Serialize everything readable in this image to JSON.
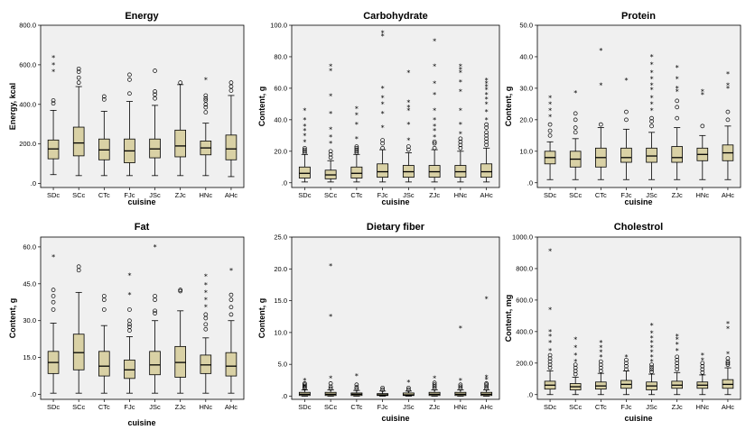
{
  "colors": {
    "plot_bg": "#f0f0f0",
    "box_fill": "#d9d1a5",
    "line": "#000000"
  },
  "chart_data": [
    {
      "type": "box",
      "title": "Energy",
      "xlabel": "cuisine",
      "ylabel": "Energy, kcal",
      "ylim": [
        -20,
        800
      ],
      "ticks": [
        ".0",
        "200.0",
        "400.0",
        "600.0",
        "800.0"
      ],
      "tick_values": [
        0,
        200,
        400,
        600,
        800
      ],
      "categories": [
        "SDc",
        "SCc",
        "CTc",
        "FJc",
        "JSc",
        "ZJc",
        "HNc",
        "AHc"
      ],
      "boxes": [
        {
          "min": 45,
          "q1": 125,
          "median": 175,
          "q3": 220,
          "max": 370,
          "outliers_circle": [
            405,
            420
          ],
          "outliers_star": [
            565,
            600,
            635
          ]
        },
        {
          "min": 40,
          "q1": 140,
          "median": 205,
          "q3": 285,
          "max": 490,
          "outliers_circle": [
            510,
            535,
            565,
            580
          ],
          "outliers_star": []
        },
        {
          "min": 40,
          "q1": 120,
          "median": 170,
          "q3": 225,
          "max": 365,
          "outliers_circle": [
            425,
            440
          ],
          "outliers_star": []
        },
        {
          "min": 40,
          "q1": 105,
          "median": 165,
          "q3": 225,
          "max": 415,
          "outliers_circle": [
            455,
            525,
            550
          ],
          "outliers_star": []
        },
        {
          "min": 40,
          "q1": 130,
          "median": 175,
          "q3": 225,
          "max": 395,
          "outliers_circle": [
            430,
            450,
            465,
            570
          ],
          "outliers_star": []
        },
        {
          "min": 40,
          "q1": 135,
          "median": 190,
          "q3": 270,
          "max": 500,
          "outliers_circle": [
            510
          ],
          "outliers_star": []
        },
        {
          "min": 40,
          "q1": 145,
          "median": 180,
          "q3": 215,
          "max": 305,
          "outliers_circle": [
            360,
            385,
            400,
            420,
            430,
            445
          ],
          "outliers_star": [
            525
          ]
        },
        {
          "min": 35,
          "q1": 120,
          "median": 175,
          "q3": 245,
          "max": 445,
          "outliers_circle": [
            470,
            490,
            510
          ],
          "outliers_star": []
        }
      ]
    },
    {
      "type": "box",
      "title": "Carbohydrate",
      "xlabel": "cuisine",
      "ylabel": "Content, g",
      "ylim": [
        -3,
        100
      ],
      "ticks": [
        ".0",
        "20.0",
        "40.0",
        "60.0",
        "80.0",
        "100.0"
      ],
      "tick_values": [
        0,
        20,
        40,
        60,
        80,
        100
      ],
      "categories": [
        "SDc",
        "SCc",
        "CTc",
        "FJc",
        "JSc",
        "ZJc",
        "HNc",
        "AHc"
      ],
      "boxes": [
        {
          "min": 0.5,
          "q1": 3,
          "median": 6,
          "q3": 10,
          "max": 18,
          "outliers_circle": [
            19,
            20,
            21,
            22
          ],
          "outliers_star": [
            26,
            30,
            33,
            36,
            40,
            46
          ]
        },
        {
          "min": 0.5,
          "q1": 2.5,
          "median": 5,
          "q3": 8,
          "max": 14,
          "outliers_circle": [
            16,
            18,
            20
          ],
          "outliers_star": [
            25,
            29,
            34,
            44,
            55,
            71,
            74
          ]
        },
        {
          "min": 0.5,
          "q1": 3,
          "median": 6,
          "q3": 10,
          "max": 18,
          "outliers_circle": [
            19,
            20,
            21,
            22,
            23
          ],
          "outliers_star": [
            28,
            37,
            43,
            47
          ]
        },
        {
          "min": 0.5,
          "q1": 3.5,
          "median": 7,
          "q3": 12,
          "max": 21,
          "outliers_circle": [
            22,
            25,
            27
          ],
          "outliers_star": [
            35,
            44,
            50,
            54,
            60,
            93,
            95
          ]
        },
        {
          "min": 0.5,
          "q1": 3.5,
          "median": 7,
          "q3": 11,
          "max": 19,
          "outliers_circle": [
            21,
            23
          ],
          "outliers_star": [
            27,
            37,
            46,
            48,
            51,
            70
          ]
        },
        {
          "min": 0.5,
          "q1": 3.5,
          "median": 7,
          "q3": 11,
          "max": 21,
          "outliers_circle": [
            22,
            25,
            26
          ],
          "outliers_star": [
            29,
            33,
            36,
            40,
            46,
            56,
            63,
            74,
            90
          ]
        },
        {
          "min": 0.5,
          "q1": 3.5,
          "median": 7,
          "q3": 11,
          "max": 20,
          "outliers_circle": [
            22,
            24,
            26,
            28
          ],
          "outliers_star": [
            31,
            37,
            46,
            58,
            64,
            70,
            72,
            74
          ]
        },
        {
          "min": 0.5,
          "q1": 3.5,
          "median": 7,
          "q3": 12,
          "max": 22,
          "outliers_circle": [
            24,
            26,
            28,
            30,
            32,
            35,
            37
          ],
          "outliers_star": [
            40,
            45,
            50,
            53,
            56,
            59,
            61,
            63,
            65
          ]
        }
      ]
    },
    {
      "type": "box",
      "title": "Protein",
      "xlabel": "cuisine",
      "ylabel": "Content, g",
      "ylim": [
        -1.5,
        50
      ],
      "ticks": [
        ".0",
        "10.0",
        "20.0",
        "30.0",
        "40.0",
        "50.0"
      ],
      "tick_values": [
        0,
        10,
        20,
        30,
        40,
        50
      ],
      "categories": [
        "SDc",
        "SCc",
        "CTc",
        "FJc",
        "JSc",
        "ZJc",
        "HNc",
        "AHc"
      ],
      "boxes": [
        {
          "min": 1,
          "q1": 6,
          "median": 8,
          "q3": 10,
          "max": 13,
          "outliers_circle": [
            15,
            16.5,
            18.5
          ],
          "outliers_star": [
            21,
            23,
            25,
            27
          ]
        },
        {
          "min": 1,
          "q1": 5,
          "median": 7.5,
          "q3": 10,
          "max": 14,
          "outliers_circle": [
            16,
            17.5,
            20,
            22
          ],
          "outliers_star": [
            28.5
          ]
        },
        {
          "min": 1,
          "q1": 5,
          "median": 8,
          "q3": 11,
          "max": 17.5,
          "outliers_circle": [
            18.5
          ],
          "outliers_star": [
            31,
            42
          ]
        },
        {
          "min": 1,
          "q1": 6.5,
          "median": 8,
          "q3": 11,
          "max": 17,
          "outliers_circle": [
            20,
            22.5
          ],
          "outliers_star": [
            32.5
          ]
        },
        {
          "min": 1,
          "q1": 6.5,
          "median": 8.5,
          "q3": 11,
          "max": 16,
          "outliers_circle": [
            18,
            19.5,
            20.5
          ],
          "outliers_star": [
            23,
            25,
            27,
            29.5,
            31,
            33,
            35,
            37.5,
            40
          ]
        },
        {
          "min": 1,
          "q1": 6.5,
          "median": 8,
          "q3": 11.5,
          "max": 17.5,
          "outliers_circle": [
            20.5,
            24,
            26
          ],
          "outliers_star": [
            29,
            30,
            33,
            36.5
          ]
        },
        {
          "min": 1,
          "q1": 7,
          "median": 9,
          "q3": 11,
          "max": 15,
          "outliers_circle": [
            18
          ],
          "outliers_star": [
            28,
            29
          ]
        },
        {
          "min": 1,
          "q1": 7,
          "median": 9.5,
          "q3": 12,
          "max": 18,
          "outliers_circle": [
            20,
            22.5
          ],
          "outliers_star": [
            30,
            31,
            34.5
          ]
        }
      ]
    },
    {
      "type": "box",
      "title": "Fat",
      "xlabel": "cuisine",
      "ylabel": "Content, g",
      "ylim": [
        -2,
        64
      ],
      "ticks": [
        ".0",
        "15.0",
        "30.0",
        "45.0",
        "60.0"
      ],
      "tick_values": [
        0,
        15,
        30,
        45,
        60
      ],
      "categories": [
        "SDc",
        "SCc",
        "CTc",
        "FJc",
        "JSc",
        "ZJc",
        "HNc",
        "AHc"
      ],
      "boxes": [
        {
          "min": 0.5,
          "q1": 8.5,
          "median": 13,
          "q3": 17.5,
          "max": 29,
          "outliers_circle": [
            34.5,
            37.5,
            40,
            42.5
          ],
          "outliers_star": [
            56
          ]
        },
        {
          "min": 0.5,
          "q1": 10,
          "median": 17,
          "q3": 24.5,
          "max": 41.5,
          "outliers_circle": [
            50.5,
            52
          ],
          "outliers_star": []
        },
        {
          "min": 0.5,
          "q1": 7.5,
          "median": 11.5,
          "q3": 17.5,
          "max": 28,
          "outliers_circle": [
            34.5,
            38.5,
            40
          ],
          "outliers_star": []
        },
        {
          "min": 0.5,
          "q1": 6.5,
          "median": 10,
          "q3": 14,
          "max": 23.5,
          "outliers_circle": [
            26,
            27.5,
            28.5,
            30,
            34.5
          ],
          "outliers_star": [
            40.5,
            48.5
          ]
        },
        {
          "min": 0.5,
          "q1": 8,
          "median": 12,
          "q3": 17.5,
          "max": 30,
          "outliers_circle": [
            33,
            34,
            38.5,
            40
          ],
          "outliers_star": [
            60
          ]
        },
        {
          "min": 0.5,
          "q1": 7,
          "median": 13,
          "q3": 19.5,
          "max": 34,
          "outliers_circle": [
            42,
            42.5
          ],
          "outliers_star": []
        },
        {
          "min": 0.5,
          "q1": 8.5,
          "median": 12,
          "q3": 16,
          "max": 23,
          "outliers_circle": [
            26.5,
            28.5,
            31,
            32.5
          ],
          "outliers_star": [
            35.5,
            38.5,
            41.5,
            44.5,
            48
          ]
        },
        {
          "min": 0.5,
          "q1": 7.5,
          "median": 11.5,
          "q3": 17,
          "max": 30,
          "outliers_circle": [
            32.5,
            35.5,
            38.5,
            40.5
          ],
          "outliers_star": [
            50.5
          ]
        }
      ]
    },
    {
      "type": "box",
      "title": "Dietary fiber",
      "xlabel": "cuisine",
      "ylabel": "Content, g",
      "ylim": [
        -0.5,
        25
      ],
      "ticks": [
        ".0",
        "5.0",
        "10.0",
        "15.0",
        "20.0",
        "25.0"
      ],
      "tick_values": [
        0,
        5,
        10,
        15,
        20,
        25
      ],
      "categories": [
        "SDc",
        "SCc",
        "CTc",
        "FJc",
        "JSc",
        "ZJc",
        "HNc",
        "AHc"
      ],
      "boxes": [
        {
          "min": 0,
          "q1": 0.1,
          "median": 0.3,
          "q3": 0.6,
          "max": 1.0,
          "outliers_circle": [
            1.2,
            1.4,
            1.6,
            1.8,
            2.0
          ],
          "outliers_star": [
            2.5
          ]
        },
        {
          "min": 0,
          "q1": 0.1,
          "median": 0.3,
          "q3": 0.6,
          "max": 1.0,
          "outliers_circle": [
            1.2,
            1.5,
            2.0
          ],
          "outliers_star": [
            2.8,
            12.5,
            20.5
          ]
        },
        {
          "min": 0,
          "q1": 0.1,
          "median": 0.3,
          "q3": 0.5,
          "max": 0.9,
          "outliers_circle": [
            1.1,
            1.4,
            1.8
          ],
          "outliers_star": [
            3.2
          ]
        },
        {
          "min": 0,
          "q1": 0.1,
          "median": 0.2,
          "q3": 0.4,
          "max": 0.8,
          "outliers_circle": [
            1.0,
            1.3
          ],
          "outliers_star": []
        },
        {
          "min": 0,
          "q1": 0.1,
          "median": 0.2,
          "q3": 0.5,
          "max": 0.8,
          "outliers_circle": [
            1.0,
            1.3
          ],
          "outliers_star": [
            2.2
          ]
        },
        {
          "min": 0,
          "q1": 0.1,
          "median": 0.3,
          "q3": 0.6,
          "max": 1.0,
          "outliers_circle": [
            1.2,
            1.5,
            1.8,
            2.1
          ],
          "outliers_star": [
            2.8
          ]
        },
        {
          "min": 0,
          "q1": 0.1,
          "median": 0.3,
          "q3": 0.6,
          "max": 1.0,
          "outliers_circle": [
            1.2,
            1.5,
            1.8
          ],
          "outliers_star": [
            2.5,
            10.7
          ]
        },
        {
          "min": 0,
          "q1": 0.1,
          "median": 0.3,
          "q3": 0.6,
          "max": 1.0,
          "outliers_circle": [
            1.2,
            1.5,
            1.8,
            2.0
          ],
          "outliers_star": [
            2.6,
            3.0,
            15.3
          ]
        }
      ]
    },
    {
      "type": "box",
      "title": "Cholestrol",
      "xlabel": "cuisine",
      "ylabel": "Content, mg",
      "ylim": [
        -30,
        1000
      ],
      "ticks": [
        ".0",
        "200.0",
        "400.0",
        "600.0",
        "800.0",
        "1000.0"
      ],
      "tick_values": [
        0,
        200,
        400,
        600,
        800,
        1000
      ],
      "categories": [
        "SDc",
        "SCc",
        "CTc",
        "FJc",
        "JSc",
        "ZJc",
        "HNc",
        "AHc"
      ],
      "boxes": [
        {
          "min": 0,
          "q1": 35,
          "median": 60,
          "q3": 85,
          "max": 150,
          "outliers_circle": [
            170,
            190,
            210,
            230,
            250
          ],
          "outliers_star": [
            280,
            330,
            370,
            400,
            540,
            910
          ]
        },
        {
          "min": 0,
          "q1": 30,
          "median": 50,
          "q3": 70,
          "max": 110,
          "outliers_circle": [
            130,
            150,
            170,
            190
          ],
          "outliers_star": [
            210,
            250,
            300,
            350
          ]
        },
        {
          "min": 0,
          "q1": 35,
          "median": 55,
          "q3": 80,
          "max": 135,
          "outliers_circle": [
            150,
            170,
            190,
            210
          ],
          "outliers_star": [
            240,
            270,
            300,
            330
          ]
        },
        {
          "min": 0,
          "q1": 40,
          "median": 65,
          "q3": 90,
          "max": 150,
          "outliers_circle": [
            160,
            180,
            200,
            220
          ],
          "outliers_star": [
            240
          ]
        },
        {
          "min": 0,
          "q1": 30,
          "median": 55,
          "q3": 80,
          "max": 130,
          "outliers_circle": [
            145,
            160,
            175,
            190
          ],
          "outliers_star": [
            210,
            240,
            270,
            300,
            330,
            360,
            390,
            440
          ]
        },
        {
          "min": 0,
          "q1": 40,
          "median": 60,
          "q3": 85,
          "max": 140,
          "outliers_circle": [
            160,
            180,
            200,
            220,
            240
          ],
          "outliers_star": [
            280,
            320,
            350,
            370
          ]
        },
        {
          "min": 0,
          "q1": 40,
          "median": 60,
          "q3": 80,
          "max": 125,
          "outliers_circle": [
            140,
            160,
            180,
            200
          ],
          "outliers_star": [
            220,
            250
          ]
        },
        {
          "min": 0,
          "q1": 40,
          "median": 65,
          "q3": 95,
          "max": 170,
          "outliers_circle": [
            190,
            200,
            210,
            230
          ],
          "outliers_star": [
            260,
            420,
            450
          ]
        }
      ]
    }
  ]
}
